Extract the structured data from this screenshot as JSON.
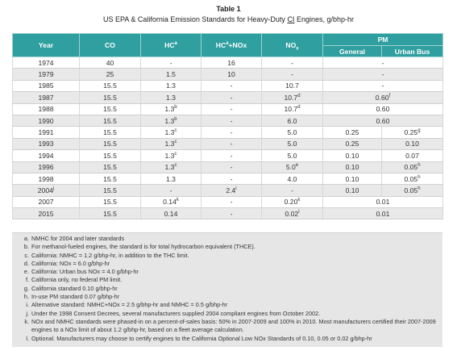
{
  "table_number": "Table 1",
  "caption": {
    "before": "US EPA & California Emission Standards for Heavy-Duty ",
    "ci": "CI",
    "after": " Engines, g/bhp-hr"
  },
  "columns": {
    "year": "Year",
    "co": "CO",
    "hc": "HC",
    "hc_sup": "a",
    "hcnox_a": "HC",
    "hcnox_sup": "a",
    "hcnox_b": "+NOx",
    "nox": "NO",
    "nox_sub": "x",
    "pm": "PM",
    "general": "General",
    "urban_bus": "Urban Bus"
  },
  "rows": [
    {
      "year": "1974",
      "year_sup": "",
      "co": "40",
      "hc": "-",
      "hc_sup": "",
      "hcnox": "16",
      "hcnox_sup": "",
      "nox": "-",
      "nox_sup": "",
      "pm_merged": "-",
      "pm_merged_sup": "",
      "general": "",
      "general_sup": "",
      "urban": "",
      "urban_sup": ""
    },
    {
      "year": "1979",
      "year_sup": "",
      "co": "25",
      "hc": "1.5",
      "hc_sup": "",
      "hcnox": "10",
      "hcnox_sup": "",
      "nox": "-",
      "nox_sup": "",
      "pm_merged": "-",
      "pm_merged_sup": "",
      "general": "",
      "general_sup": "",
      "urban": "",
      "urban_sup": ""
    },
    {
      "year": "1985",
      "year_sup": "",
      "co": "15.5",
      "hc": "1.3",
      "hc_sup": "",
      "hcnox": "-",
      "hcnox_sup": "",
      "nox": "10.7",
      "nox_sup": "",
      "pm_merged": "-",
      "pm_merged_sup": "",
      "general": "",
      "general_sup": "",
      "urban": "",
      "urban_sup": ""
    },
    {
      "year": "1987",
      "year_sup": "",
      "co": "15.5",
      "hc": "1.3",
      "hc_sup": "",
      "hcnox": "-",
      "hcnox_sup": "",
      "nox": "10.7",
      "nox_sup": "d",
      "pm_merged": "0.60",
      "pm_merged_sup": "f",
      "general": "",
      "general_sup": "",
      "urban": "",
      "urban_sup": ""
    },
    {
      "year": "1988",
      "year_sup": "",
      "co": "15.5",
      "hc": "1.3",
      "hc_sup": "b",
      "hcnox": "-",
      "hcnox_sup": "",
      "nox": "10.7",
      "nox_sup": "d",
      "pm_merged": "0.60",
      "pm_merged_sup": "",
      "general": "",
      "general_sup": "",
      "urban": "",
      "urban_sup": ""
    },
    {
      "year": "1990",
      "year_sup": "",
      "co": "15.5",
      "hc": "1.3",
      "hc_sup": "b",
      "hcnox": "-",
      "hcnox_sup": "",
      "nox": "6.0",
      "nox_sup": "",
      "pm_merged": "0.60",
      "pm_merged_sup": "",
      "general": "",
      "general_sup": "",
      "urban": "",
      "urban_sup": ""
    },
    {
      "year": "1991",
      "year_sup": "",
      "co": "15.5",
      "hc": "1.3",
      "hc_sup": "c",
      "hcnox": "-",
      "hcnox_sup": "",
      "nox": "5.0",
      "nox_sup": "",
      "pm_merged": "",
      "pm_merged_sup": "",
      "general": "0.25",
      "general_sup": "",
      "urban": "0.25",
      "urban_sup": "g"
    },
    {
      "year": "1993",
      "year_sup": "",
      "co": "15.5",
      "hc": "1.3",
      "hc_sup": "c",
      "hcnox": "-",
      "hcnox_sup": "",
      "nox": "5.0",
      "nox_sup": "",
      "pm_merged": "",
      "pm_merged_sup": "",
      "general": "0.25",
      "general_sup": "",
      "urban": "0.10",
      "urban_sup": ""
    },
    {
      "year": "1994",
      "year_sup": "",
      "co": "15.5",
      "hc": "1.3",
      "hc_sup": "c",
      "hcnox": "-",
      "hcnox_sup": "",
      "nox": "5.0",
      "nox_sup": "",
      "pm_merged": "",
      "pm_merged_sup": "",
      "general": "0.10",
      "general_sup": "",
      "urban": "0.07",
      "urban_sup": ""
    },
    {
      "year": "1996",
      "year_sup": "",
      "co": "15.5",
      "hc": "1.3",
      "hc_sup": "c",
      "hcnox": "-",
      "hcnox_sup": "",
      "nox": "5.0",
      "nox_sup": "e",
      "pm_merged": "",
      "pm_merged_sup": "",
      "general": "0.10",
      "general_sup": "",
      "urban": "0.05",
      "urban_sup": "h"
    },
    {
      "year": "1998",
      "year_sup": "",
      "co": "15.5",
      "hc": "1.3",
      "hc_sup": "",
      "hcnox": "-",
      "hcnox_sup": "",
      "nox": "4.0",
      "nox_sup": "",
      "pm_merged": "",
      "pm_merged_sup": "",
      "general": "0.10",
      "general_sup": "",
      "urban": "0.05",
      "urban_sup": "h"
    },
    {
      "year": "2004",
      "year_sup": "j",
      "co": "15.5",
      "hc": "-",
      "hc_sup": "",
      "hcnox": "2.4",
      "hcnox_sup": "i",
      "nox": "-",
      "nox_sup": "",
      "pm_merged": "",
      "pm_merged_sup": "",
      "general": "0.10",
      "general_sup": "",
      "urban": "0.05",
      "urban_sup": "h"
    },
    {
      "year": "2007",
      "year_sup": "",
      "co": "15.5",
      "hc": "0.14",
      "hc_sup": "k",
      "hcnox": "-",
      "hcnox_sup": "",
      "nox": "0.20",
      "nox_sup": "k",
      "pm_merged": "0.01",
      "pm_merged_sup": "",
      "general": "",
      "general_sup": "",
      "urban": "",
      "urban_sup": ""
    },
    {
      "year": "2015",
      "year_sup": "",
      "co": "15.5",
      "hc": "0.14",
      "hc_sup": "",
      "hcnox": "-",
      "hcnox_sup": "",
      "nox": "0.02",
      "nox_sup": "l",
      "pm_merged": "0.01",
      "pm_merged_sup": "",
      "general": "",
      "general_sup": "",
      "urban": "",
      "urban_sup": ""
    }
  ],
  "notes": [
    {
      "label": "a.",
      "text": "NMHC for 2004 and later standards"
    },
    {
      "label": "b.",
      "text": "For methanol-fueled engines, the standard is for total hydrocarbon equivalent (THCE)."
    },
    {
      "label": "c.",
      "text": "California: NMHC = 1.2 g/bhp-hr, in addition to the THC limit."
    },
    {
      "label": "d.",
      "text": "California: NOx = 6.0 g/bhp-hr"
    },
    {
      "label": "e.",
      "text": "California: Urban bus NOx = 4.0 g/bhp-hr"
    },
    {
      "label": "f.",
      "text": "California only, no federal PM limit."
    },
    {
      "label": "g.",
      "text": "California standard 0.10 g/bhp-hr"
    },
    {
      "label": "h.",
      "text": "In-use PM standard 0.07 g/bhp-hr"
    },
    {
      "label": "i.",
      "text": "Alternative standard: NMHC+NOx = 2.5 g/bhp-hr and NMHC = 0.5 g/bhp-hr"
    },
    {
      "label": "j.",
      "text": "Under the 1998 Consent Decrees, several manufacturers supplied 2004 compliant engines from October 2002."
    },
    {
      "label": "k.",
      "text": "NOx and NMHC standards were phased-in on a percent-of-sales basis: 50% in 2007-2009 and 100% in 2010. Most manufacturers certified their 2007-2009 engines to a NOx limit of about 1.2 g/bhp-hr, based on a fleet average calculation."
    },
    {
      "label": "l.",
      "text": "Optional. Manufacturers may choose to certify engines to the California Optional Low NOx Standards of 0.10, 0.05 or 0.02 g/bhp-hr"
    }
  ]
}
